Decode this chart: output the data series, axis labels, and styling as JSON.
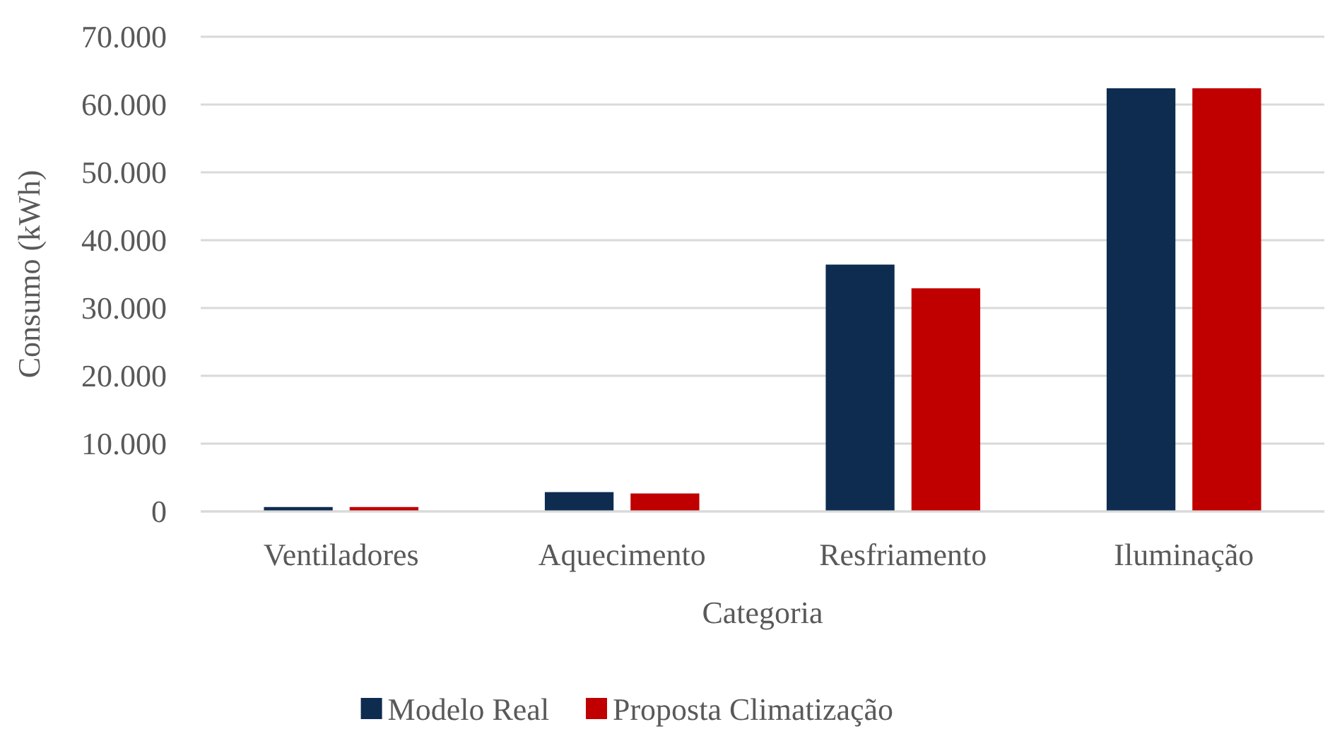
{
  "chart_data": {
    "type": "bar",
    "xlabel": "Categoria",
    "ylabel": "Consumo (kWh)",
    "categories": [
      "Ventiladores",
      "Aquecimento",
      "Resfriamento",
      "Iluminação"
    ],
    "series": [
      {
        "name": "Modelo Real",
        "color": "#0e2c50",
        "values": [
          650,
          2850,
          36400,
          62400
        ]
      },
      {
        "name": "Proposta Climatização",
        "color": "#c00000",
        "values": [
          650,
          2650,
          32900,
          62400
        ]
      }
    ],
    "ylim": [
      0,
      70000
    ],
    "yticks": [
      {
        "value": 0,
        "label": "0"
      },
      {
        "value": 10000,
        "label": "10.000"
      },
      {
        "value": 20000,
        "label": "20.000"
      },
      {
        "value": 30000,
        "label": "30.000"
      },
      {
        "value": 40000,
        "label": "40.000"
      },
      {
        "value": 50000,
        "label": "50.000"
      },
      {
        "value": 60000,
        "label": "60.000"
      },
      {
        "value": 70000,
        "label": "70.000"
      }
    ],
    "grid": "y",
    "legend": "bottom"
  }
}
